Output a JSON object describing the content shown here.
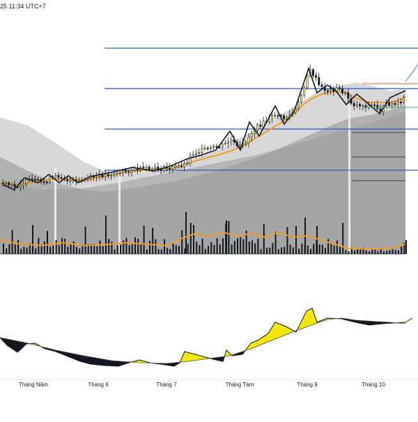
{
  "header": {
    "time_text": "25 11:34 UTC+7"
  },
  "colors": {
    "background": "#ffffff",
    "level_line": "#2a56c6",
    "candle_up": "#f5e26b",
    "candle_down": "#131722",
    "ema_orange": "#f59a23",
    "zigzag": "#131722",
    "band_gray": "#9e9e9e",
    "volume_bar": "#131722",
    "osc_fill_positive": "#f5e800",
    "osc_fill_negative": "#131722",
    "proj_blue": "#7fa8e0",
    "proj_red": "#e05050",
    "proj_green": "#39b26b"
  },
  "x_axis": {
    "months": [
      "Tháng Năm",
      "Tháng 6",
      "Tháng 7",
      "Tháng Tám",
      "Tháng 9",
      "Tháng 10"
    ]
  },
  "icons": {
    "projection_arrow": "up-arrow-icon"
  }
}
